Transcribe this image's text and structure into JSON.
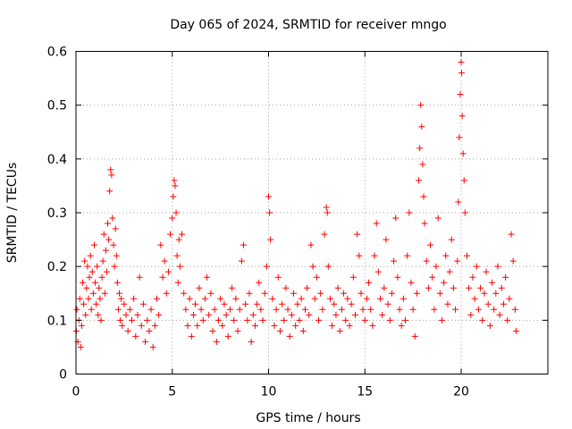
{
  "chart_data": {
    "type": "scatter",
    "title": "Day 065 of 2024, SRMTID for receiver mngo",
    "xlabel": "GPS time / hours",
    "ylabel": "SRMTID / TECUs",
    "xlim": [
      0,
      24.5
    ],
    "ylim": [
      0,
      0.6
    ],
    "xticks": [
      0,
      5,
      10,
      15,
      20
    ],
    "xtick_labels": [
      "0",
      "5",
      "10",
      "15",
      "20"
    ],
    "yticks": [
      0,
      0.1,
      0.2,
      0.3,
      0.4,
      0.5,
      0.6
    ],
    "ytick_labels": [
      "0",
      "0.1",
      "0.2",
      "0.3",
      "0.4",
      "0.5",
      "0.6"
    ],
    "grid": true,
    "marker": "+",
    "color": "#ff0000",
    "series": [
      {
        "name": "SRMTID",
        "points": [
          [
            0.02,
            0.08
          ],
          [
            0.05,
            0.12
          ],
          [
            0.1,
            0.06
          ],
          [
            0.15,
            0.1
          ],
          [
            0.2,
            0.14
          ],
          [
            0.25,
            0.05
          ],
          [
            0.3,
            0.09
          ],
          [
            0.35,
            0.17
          ],
          [
            0.4,
            0.13
          ],
          [
            0.45,
            0.21
          ],
          [
            0.5,
            0.11
          ],
          [
            0.55,
            0.16
          ],
          [
            0.6,
            0.2
          ],
          [
            0.65,
            0.14
          ],
          [
            0.7,
            0.18
          ],
          [
            0.75,
            0.22
          ],
          [
            0.8,
            0.12
          ],
          [
            0.85,
            0.19
          ],
          [
            0.9,
            0.15
          ],
          [
            0.95,
            0.24
          ],
          [
            1.0,
            0.17
          ],
          [
            1.05,
            0.13
          ],
          [
            1.1,
            0.2
          ],
          [
            1.15,
            0.11
          ],
          [
            1.2,
            0.16
          ],
          [
            1.25,
            0.14
          ],
          [
            1.3,
            0.1
          ],
          [
            1.35,
            0.18
          ],
          [
            1.4,
            0.21
          ],
          [
            1.45,
            0.26
          ],
          [
            1.5,
            0.15
          ],
          [
            1.55,
            0.23
          ],
          [
            1.6,
            0.19
          ],
          [
            1.65,
            0.28
          ],
          [
            1.7,
            0.25
          ],
          [
            1.75,
            0.34
          ],
          [
            1.8,
            0.38
          ],
          [
            1.85,
            0.37
          ],
          [
            1.9,
            0.29
          ],
          [
            1.95,
            0.24
          ],
          [
            2.0,
            0.2
          ],
          [
            2.05,
            0.27
          ],
          [
            2.1,
            0.22
          ],
          [
            2.15,
            0.17
          ],
          [
            2.2,
            0.12
          ],
          [
            2.25,
            0.15
          ],
          [
            2.3,
            0.1
          ],
          [
            2.35,
            0.14
          ],
          [
            2.4,
            0.09
          ],
          [
            2.5,
            0.13
          ],
          [
            2.6,
            0.11
          ],
          [
            2.7,
            0.08
          ],
          [
            2.8,
            0.12
          ],
          [
            2.9,
            0.1
          ],
          [
            3.0,
            0.14
          ],
          [
            3.1,
            0.07
          ],
          [
            3.2,
            0.11
          ],
          [
            3.3,
            0.18
          ],
          [
            3.4,
            0.09
          ],
          [
            3.5,
            0.13
          ],
          [
            3.6,
            0.06
          ],
          [
            3.7,
            0.1
          ],
          [
            3.8,
            0.08
          ],
          [
            3.9,
            0.12
          ],
          [
            4.0,
            0.05
          ],
          [
            4.1,
            0.09
          ],
          [
            4.2,
            0.14
          ],
          [
            4.3,
            0.11
          ],
          [
            4.4,
            0.24
          ],
          [
            4.5,
            0.18
          ],
          [
            4.6,
            0.21
          ],
          [
            4.7,
            0.15
          ],
          [
            4.8,
            0.19
          ],
          [
            4.9,
            0.26
          ],
          [
            5.0,
            0.29
          ],
          [
            5.05,
            0.33
          ],
          [
            5.1,
            0.36
          ],
          [
            5.15,
            0.35
          ],
          [
            5.2,
            0.3
          ],
          [
            5.25,
            0.22
          ],
          [
            5.3,
            0.17
          ],
          [
            5.35,
            0.25
          ],
          [
            5.4,
            0.2
          ],
          [
            5.5,
            0.26
          ],
          [
            5.6,
            0.15
          ],
          [
            5.7,
            0.12
          ],
          [
            5.8,
            0.09
          ],
          [
            5.9,
            0.14
          ],
          [
            6.0,
            0.07
          ],
          [
            6.1,
            0.11
          ],
          [
            6.2,
            0.13
          ],
          [
            6.3,
            0.09
          ],
          [
            6.4,
            0.16
          ],
          [
            6.5,
            0.12
          ],
          [
            6.6,
            0.1
          ],
          [
            6.7,
            0.14
          ],
          [
            6.8,
            0.18
          ],
          [
            6.9,
            0.11
          ],
          [
            7.0,
            0.15
          ],
          [
            7.1,
            0.08
          ],
          [
            7.2,
            0.12
          ],
          [
            7.3,
            0.06
          ],
          [
            7.4,
            0.1
          ],
          [
            7.5,
            0.14
          ],
          [
            7.6,
            0.09
          ],
          [
            7.7,
            0.13
          ],
          [
            7.8,
            0.11
          ],
          [
            7.9,
            0.07
          ],
          [
            8.0,
            0.12
          ],
          [
            8.1,
            0.16
          ],
          [
            8.2,
            0.1
          ],
          [
            8.3,
            0.14
          ],
          [
            8.4,
            0.08
          ],
          [
            8.5,
            0.12
          ],
          [
            8.6,
            0.21
          ],
          [
            8.7,
            0.24
          ],
          [
            8.8,
            0.13
          ],
          [
            8.9,
            0.1
          ],
          [
            9.0,
            0.15
          ],
          [
            9.1,
            0.06
          ],
          [
            9.2,
            0.11
          ],
          [
            9.3,
            0.09
          ],
          [
            9.4,
            0.13
          ],
          [
            9.5,
            0.17
          ],
          [
            9.6,
            0.12
          ],
          [
            9.7,
            0.1
          ],
          [
            9.8,
            0.15
          ],
          [
            9.9,
            0.2
          ],
          [
            10.0,
            0.33
          ],
          [
            10.05,
            0.3
          ],
          [
            10.1,
            0.25
          ],
          [
            10.2,
            0.14
          ],
          [
            10.3,
            0.09
          ],
          [
            10.4,
            0.12
          ],
          [
            10.5,
            0.18
          ],
          [
            10.6,
            0.08
          ],
          [
            10.7,
            0.13
          ],
          [
            10.8,
            0.1
          ],
          [
            10.9,
            0.16
          ],
          [
            11.0,
            0.12
          ],
          [
            11.1,
            0.07
          ],
          [
            11.2,
            0.11
          ],
          [
            11.3,
            0.15
          ],
          [
            11.4,
            0.09
          ],
          [
            11.5,
            0.13
          ],
          [
            11.6,
            0.1
          ],
          [
            11.7,
            0.14
          ],
          [
            11.8,
            0.08
          ],
          [
            11.9,
            0.12
          ],
          [
            12.0,
            0.16
          ],
          [
            12.1,
            0.11
          ],
          [
            12.2,
            0.24
          ],
          [
            12.3,
            0.2
          ],
          [
            12.4,
            0.14
          ],
          [
            12.5,
            0.18
          ],
          [
            12.6,
            0.1
          ],
          [
            12.7,
            0.15
          ],
          [
            12.8,
            0.12
          ],
          [
            12.9,
            0.26
          ],
          [
            13.0,
            0.31
          ],
          [
            13.05,
            0.3
          ],
          [
            13.1,
            0.2
          ],
          [
            13.2,
            0.14
          ],
          [
            13.3,
            0.09
          ],
          [
            13.4,
            0.13
          ],
          [
            13.5,
            0.11
          ],
          [
            13.6,
            0.16
          ],
          [
            13.7,
            0.08
          ],
          [
            13.8,
            0.12
          ],
          [
            13.9,
            0.15
          ],
          [
            14.0,
            0.1
          ],
          [
            14.1,
            0.14
          ],
          [
            14.2,
            0.09
          ],
          [
            14.3,
            0.13
          ],
          [
            14.4,
            0.18
          ],
          [
            14.5,
            0.11
          ],
          [
            14.6,
            0.26
          ],
          [
            14.7,
            0.22
          ],
          [
            14.8,
            0.15
          ],
          [
            14.9,
            0.12
          ],
          [
            15.0,
            0.1
          ],
          [
            15.1,
            0.14
          ],
          [
            15.2,
            0.17
          ],
          [
            15.3,
            0.12
          ],
          [
            15.4,
            0.09
          ],
          [
            15.5,
            0.22
          ],
          [
            15.6,
            0.28
          ],
          [
            15.7,
            0.19
          ],
          [
            15.8,
            0.14
          ],
          [
            15.9,
            0.11
          ],
          [
            16.0,
            0.16
          ],
          [
            16.1,
            0.25
          ],
          [
            16.2,
            0.13
          ],
          [
            16.3,
            0.1
          ],
          [
            16.4,
            0.15
          ],
          [
            16.5,
            0.21
          ],
          [
            16.6,
            0.29
          ],
          [
            16.7,
            0.18
          ],
          [
            16.8,
            0.12
          ],
          [
            16.9,
            0.09
          ],
          [
            17.0,
            0.14
          ],
          [
            17.1,
            0.1
          ],
          [
            17.2,
            0.22
          ],
          [
            17.3,
            0.3
          ],
          [
            17.4,
            0.17
          ],
          [
            17.5,
            0.12
          ],
          [
            17.6,
            0.07
          ],
          [
            17.7,
            0.15
          ],
          [
            17.8,
            0.36
          ],
          [
            17.85,
            0.42
          ],
          [
            17.9,
            0.5
          ],
          [
            17.95,
            0.46
          ],
          [
            18.0,
            0.39
          ],
          [
            18.05,
            0.33
          ],
          [
            18.1,
            0.28
          ],
          [
            18.2,
            0.21
          ],
          [
            18.3,
            0.16
          ],
          [
            18.4,
            0.24
          ],
          [
            18.5,
            0.18
          ],
          [
            18.6,
            0.12
          ],
          [
            18.7,
            0.2
          ],
          [
            18.8,
            0.29
          ],
          [
            18.9,
            0.15
          ],
          [
            19.0,
            0.1
          ],
          [
            19.1,
            0.17
          ],
          [
            19.2,
            0.22
          ],
          [
            19.3,
            0.13
          ],
          [
            19.4,
            0.19
          ],
          [
            19.5,
            0.25
          ],
          [
            19.6,
            0.16
          ],
          [
            19.7,
            0.12
          ],
          [
            19.8,
            0.21
          ],
          [
            19.85,
            0.32
          ],
          [
            19.9,
            0.44
          ],
          [
            19.95,
            0.52
          ],
          [
            20.0,
            0.58
          ],
          [
            20.02,
            0.56
          ],
          [
            20.05,
            0.48
          ],
          [
            20.1,
            0.41
          ],
          [
            20.15,
            0.36
          ],
          [
            20.2,
            0.3
          ],
          [
            20.3,
            0.22
          ],
          [
            20.4,
            0.16
          ],
          [
            20.5,
            0.11
          ],
          [
            20.6,
            0.18
          ],
          [
            20.7,
            0.14
          ],
          [
            20.8,
            0.2
          ],
          [
            20.9,
            0.12
          ],
          [
            21.0,
            0.16
          ],
          [
            21.1,
            0.1
          ],
          [
            21.2,
            0.15
          ],
          [
            21.3,
            0.19
          ],
          [
            21.4,
            0.13
          ],
          [
            21.5,
            0.09
          ],
          [
            21.6,
            0.17
          ],
          [
            21.7,
            0.12
          ],
          [
            21.8,
            0.15
          ],
          [
            21.9,
            0.2
          ],
          [
            22.0,
            0.11
          ],
          [
            22.1,
            0.16
          ],
          [
            22.2,
            0.13
          ],
          [
            22.3,
            0.18
          ],
          [
            22.4,
            0.1
          ],
          [
            22.5,
            0.14
          ],
          [
            22.6,
            0.26
          ],
          [
            22.7,
            0.21
          ],
          [
            22.8,
            0.12
          ],
          [
            22.85,
            0.08
          ]
        ]
      }
    ]
  }
}
